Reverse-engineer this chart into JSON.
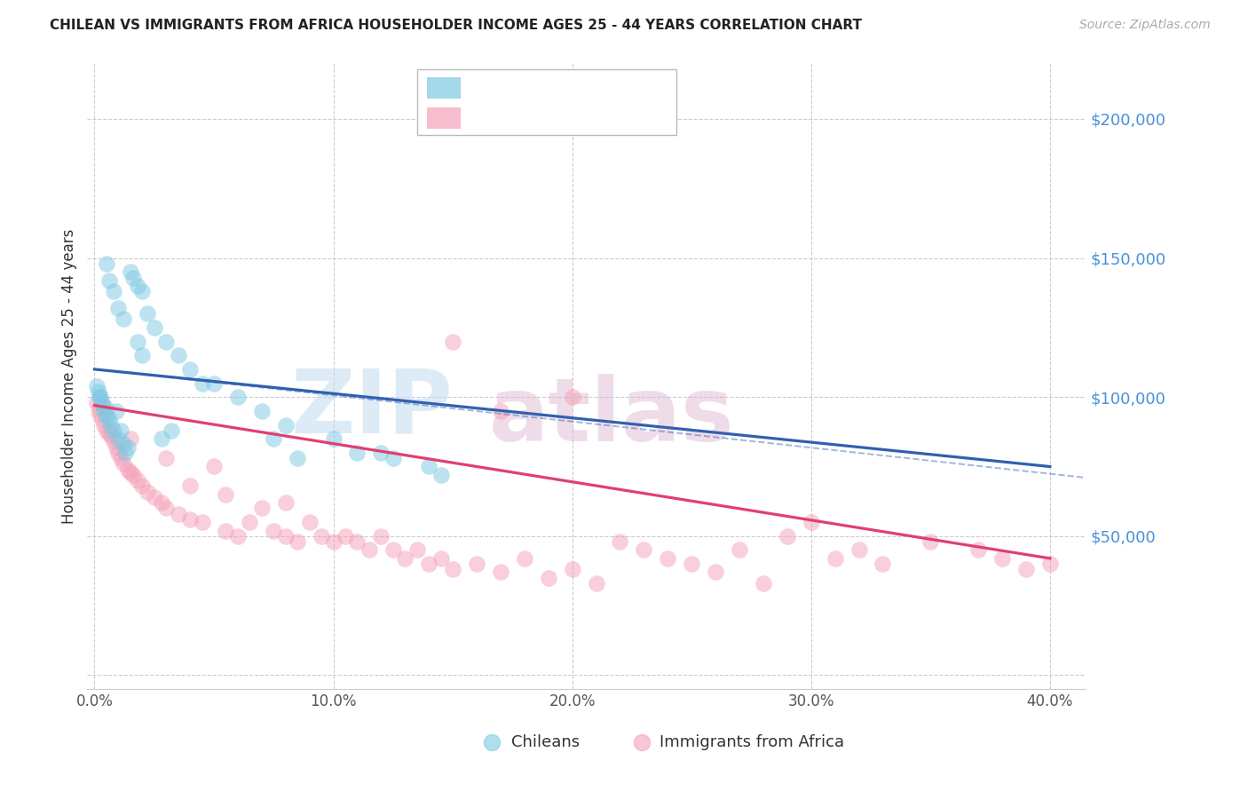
{
  "title": "CHILEAN VS IMMIGRANTS FROM AFRICA HOUSEHOLDER INCOME AGES 25 - 44 YEARS CORRELATION CHART",
  "source": "Source: ZipAtlas.com",
  "ylabel": "Householder Income Ages 25 - 44 years",
  "ytick_vals": [
    0,
    50000,
    100000,
    150000,
    200000
  ],
  "ytick_labels": [
    "",
    "$50,000",
    "$100,000",
    "$150,000",
    "$200,000"
  ],
  "xtick_vals": [
    0,
    10,
    20,
    30,
    40
  ],
  "xtick_labels": [
    "0.0%",
    "10.0%",
    "20.0%",
    "30.0%",
    "40.0%"
  ],
  "xlim": [
    -0.3,
    41.5
  ],
  "ylim": [
    -5000,
    220000
  ],
  "chilean_color": "#7ec8e3",
  "africa_color": "#f4a0b8",
  "chilean_line_color": "#3060b0",
  "africa_line_color": "#e04070",
  "chilean_line_x0": 0,
  "chilean_line_y0": 110000,
  "chilean_line_x1": 40,
  "chilean_line_y1": 75000,
  "africa_line_x0": 0,
  "africa_line_y0": 97000,
  "africa_line_x1": 40,
  "africa_line_y1": 42000,
  "blue_dash_x0": 0,
  "blue_dash_y0": 110000,
  "blue_dash_x1": 41.5,
  "blue_dash_y1": 71000,
  "chilean_x": [
    0.1,
    0.15,
    0.2,
    0.25,
    0.3,
    0.35,
    0.4,
    0.5,
    0.6,
    0.7,
    0.8,
    1.0,
    1.2,
    1.3,
    1.5,
    1.6,
    1.8,
    2.0,
    2.2,
    2.5,
    3.0,
    3.5,
    4.0,
    4.5,
    5.0,
    6.0,
    7.0,
    8.0,
    10.0,
    12.0,
    14.0,
    0.9,
    1.1,
    1.4,
    2.8,
    3.2,
    0.5,
    0.6,
    0.8,
    1.0,
    1.2,
    1.8,
    2.0,
    7.5,
    12.5,
    14.5,
    8.5,
    11.0
  ],
  "chilean_y": [
    104000,
    102000,
    100000,
    100000,
    98000,
    97000,
    95000,
    93000,
    92000,
    90000,
    88000,
    85000,
    83000,
    80000,
    145000,
    143000,
    140000,
    138000,
    130000,
    125000,
    120000,
    115000,
    110000,
    105000,
    105000,
    100000,
    95000,
    90000,
    85000,
    80000,
    75000,
    95000,
    88000,
    82000,
    85000,
    88000,
    148000,
    142000,
    138000,
    132000,
    128000,
    120000,
    115000,
    85000,
    78000,
    72000,
    78000,
    80000
  ],
  "africa_x": [
    0.1,
    0.15,
    0.2,
    0.3,
    0.4,
    0.5,
    0.6,
    0.7,
    0.8,
    0.9,
    1.0,
    1.1,
    1.2,
    1.4,
    1.5,
    1.6,
    1.8,
    2.0,
    2.2,
    2.5,
    2.8,
    3.0,
    3.5,
    4.0,
    4.5,
    5.0,
    5.5,
    6.0,
    6.5,
    7.0,
    7.5,
    8.0,
    8.5,
    9.0,
    9.5,
    10.0,
    10.5,
    11.0,
    11.5,
    12.0,
    12.5,
    13.0,
    13.5,
    14.0,
    14.5,
    15.0,
    16.0,
    17.0,
    18.0,
    19.0,
    20.0,
    21.0,
    22.0,
    23.0,
    24.0,
    25.0,
    26.0,
    27.0,
    28.0,
    29.0,
    30.0,
    31.0,
    32.0,
    33.0,
    35.0,
    37.0,
    38.0,
    39.0,
    40.0,
    15.0,
    20.0,
    17.0,
    0.5,
    1.5,
    3.0,
    4.0,
    5.5,
    8.0
  ],
  "africa_y": [
    98000,
    96000,
    94000,
    92000,
    90000,
    88000,
    87000,
    86000,
    84000,
    82000,
    80000,
    78000,
    76000,
    74000,
    73000,
    72000,
    70000,
    68000,
    66000,
    64000,
    62000,
    60000,
    58000,
    56000,
    55000,
    75000,
    52000,
    50000,
    55000,
    60000,
    52000,
    50000,
    48000,
    55000,
    50000,
    48000,
    50000,
    48000,
    45000,
    50000,
    45000,
    42000,
    45000,
    40000,
    42000,
    38000,
    40000,
    37000,
    42000,
    35000,
    38000,
    33000,
    48000,
    45000,
    42000,
    40000,
    37000,
    45000,
    33000,
    50000,
    55000,
    42000,
    45000,
    40000,
    48000,
    45000,
    42000,
    38000,
    40000,
    120000,
    100000,
    95000,
    96000,
    85000,
    78000,
    68000,
    65000,
    62000
  ]
}
